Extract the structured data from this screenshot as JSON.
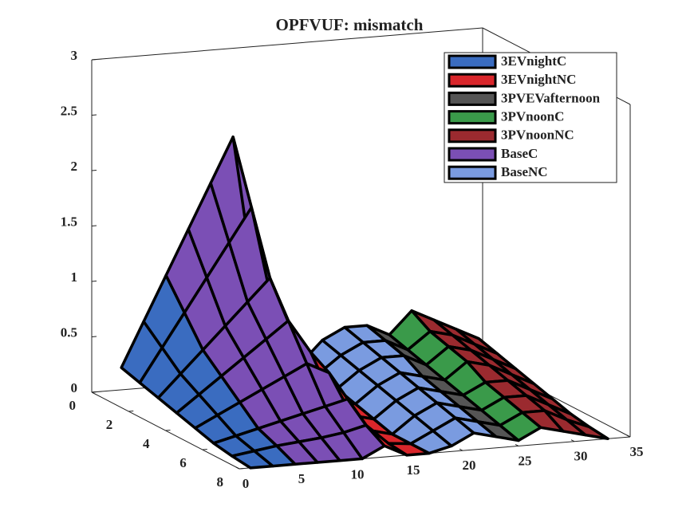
{
  "chart_data": {
    "type": "surface",
    "title": "OPFVUF: mismatch",
    "xlim": [
      0,
      35
    ],
    "xticks": [
      0,
      5,
      10,
      15,
      20,
      25,
      30,
      35
    ],
    "ylim": [
      0,
      8
    ],
    "yticks": [
      0,
      2,
      4,
      6,
      8
    ],
    "zlim": [
      0,
      3
    ],
    "zticks": [
      0,
      0.5,
      1,
      1.5,
      2,
      2.5,
      3
    ],
    "y": [
      1,
      2,
      3,
      4,
      5,
      6,
      7,
      8
    ],
    "legend": "upper right",
    "series": [
      {
        "name": "3EVnightC",
        "color": "#3a6cc0",
        "x": [
          1,
          3,
          5
        ],
        "z": [
          [
            0.3,
            0.7,
            1.1
          ],
          [
            0.25,
            0.55,
            0.85
          ],
          [
            0.2,
            0.4,
            0.6
          ],
          [
            0.15,
            0.3,
            0.45
          ],
          [
            0.1,
            0.2,
            0.3
          ],
          [
            0.05,
            0.1,
            0.15
          ],
          [
            0.02,
            0.05,
            0.08
          ],
          [
            0,
            0,
            0
          ]
        ]
      },
      {
        "name": "3EVnightNC",
        "color": "#d9262b",
        "x": [
          13,
          15,
          17
        ],
        "z": [
          [
            0.9,
            0.3,
            0.2
          ],
          [
            0.8,
            0.25,
            0.2
          ],
          [
            0.7,
            0.2,
            0.15
          ],
          [
            0.6,
            0.15,
            0.1
          ],
          [
            0.5,
            0.1,
            0.05
          ],
          [
            0.35,
            0.05,
            0
          ],
          [
            0.2,
            0.02,
            0
          ],
          [
            0.1,
            0,
            0
          ]
        ]
      },
      {
        "name": "3PVEVafternoon",
        "color": "#555555",
        "x": [
          23,
          25
        ],
        "z": [
          [
            0.5,
            0.4
          ],
          [
            0.45,
            0.35
          ],
          [
            0.4,
            0.3
          ],
          [
            0.3,
            0.25
          ],
          [
            0.25,
            0.2
          ],
          [
            0.2,
            0.15
          ],
          [
            0.15,
            0.1
          ],
          [
            0.1,
            0.05
          ]
        ]
      },
      {
        "name": "3PVnoonC",
        "color": "#3a9a4a",
        "x": [
          25,
          27
        ],
        "z": [
          [
            0.4,
            0.6
          ],
          [
            0.35,
            0.5
          ],
          [
            0.3,
            0.45
          ],
          [
            0.25,
            0.4
          ],
          [
            0.2,
            0.3
          ],
          [
            0.15,
            0.25
          ],
          [
            0.1,
            0.2
          ],
          [
            0.05,
            0.15
          ]
        ]
      },
      {
        "name": "3PVnoonNC",
        "color": "#9b2a2f",
        "x": [
          27,
          29,
          31,
          33
        ],
        "z": [
          [
            0.6,
            0.5,
            0.4,
            0.3
          ],
          [
            0.5,
            0.45,
            0.35,
            0.25
          ],
          [
            0.45,
            0.4,
            0.3,
            0.2
          ],
          [
            0.4,
            0.35,
            0.25,
            0.15
          ],
          [
            0.3,
            0.3,
            0.2,
            0.1
          ],
          [
            0.25,
            0.25,
            0.15,
            0.05
          ],
          [
            0.2,
            0.2,
            0.1,
            0.02
          ],
          [
            0.15,
            0.1,
            0.05,
            0
          ]
        ]
      },
      {
        "name": "BaseC",
        "color": "#7b4fb5",
        "x": [
          5,
          7,
          9,
          11,
          13
        ],
        "z": [
          [
            1.1,
            1.5,
            1.9,
            2.3,
            0.9
          ],
          [
            0.85,
            1.15,
            1.45,
            1.75,
            0.8
          ],
          [
            0.6,
            0.8,
            1.0,
            1.2,
            0.7
          ],
          [
            0.45,
            0.6,
            0.75,
            0.9,
            0.6
          ],
          [
            0.3,
            0.4,
            0.5,
            0.6,
            0.5
          ],
          [
            0.15,
            0.2,
            0.25,
            0.3,
            0.35
          ],
          [
            0.08,
            0.1,
            0.12,
            0.15,
            0.2
          ],
          [
            0,
            0,
            0,
            0,
            0.1
          ]
        ]
      },
      {
        "name": "BaseNC",
        "color": "#7a9be0",
        "x": [
          17,
          19,
          21,
          23
        ],
        "z": [
          [
            0.2,
            0.4,
            0.5,
            0.5
          ],
          [
            0.2,
            0.35,
            0.45,
            0.45
          ],
          [
            0.15,
            0.3,
            0.4,
            0.4
          ],
          [
            0.1,
            0.25,
            0.35,
            0.3
          ],
          [
            0.05,
            0.2,
            0.3,
            0.25
          ],
          [
            0,
            0.15,
            0.25,
            0.2
          ],
          [
            0,
            0.1,
            0.2,
            0.15
          ],
          [
            0,
            0.05,
            0.15,
            0.1
          ]
        ]
      }
    ]
  }
}
